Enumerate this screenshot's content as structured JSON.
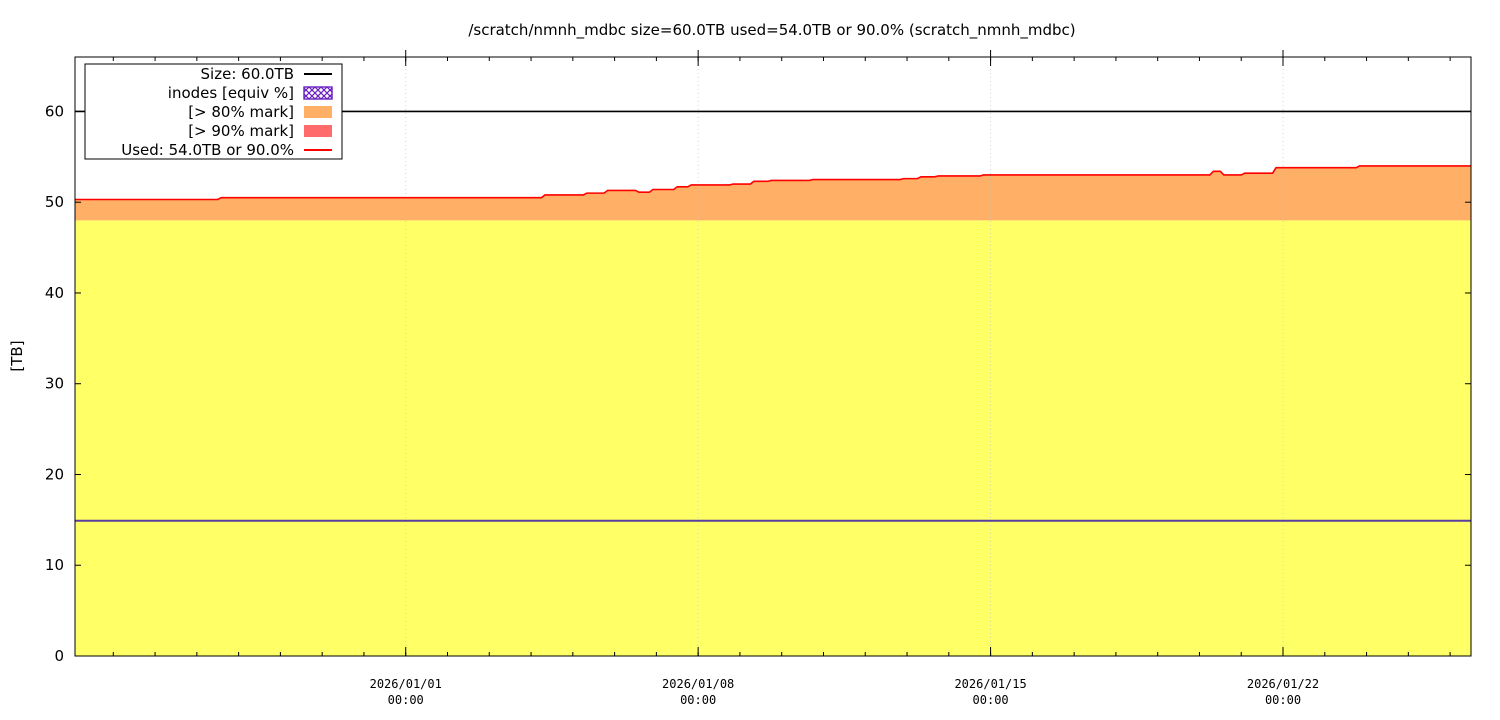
{
  "chart_data": {
    "type": "area",
    "title": "/scratch/nmnh_mdbc size=60.0TB used=54.0TB or 90.0% (scratch_nmnh_mdbc)",
    "xlabel": "",
    "ylabel": "[TB]",
    "ylim": [
      0,
      66
    ],
    "xlim": [
      "2025-12-24 02:00",
      "2026-01-26 12:00"
    ],
    "yticks": [
      "0",
      "10",
      "20",
      "30",
      "40",
      "50",
      "60"
    ],
    "xticks": [
      {
        "date": "2026/01/01",
        "time": "00:00",
        "at": "2026-01-01 00:00"
      },
      {
        "date": "2026/01/08",
        "time": "00:00",
        "at": "2026-01-08 00:00"
      },
      {
        "date": "2026/01/15",
        "time": "00:00",
        "at": "2026-01-15 00:00"
      },
      {
        "date": "2026/01/22",
        "time": "00:00",
        "at": "2026-01-22 00:00"
      }
    ],
    "grid": true,
    "legend_position": "top-left",
    "legend": [
      {
        "label": "Size: 60.0TB",
        "kind": "line",
        "color": "#000000"
      },
      {
        "label": "inodes [equiv %]",
        "kind": "hatch",
        "color": "#6a1fc0"
      },
      {
        "label": "[> 80% mark]",
        "kind": "box",
        "color": "#ffb066"
      },
      {
        "label": "[> 90% mark]",
        "kind": "box",
        "color": "#ff6b6b"
      },
      {
        "label": "Used: 54.0TB or 90.0%",
        "kind": "line",
        "color": "#ff0000"
      }
    ],
    "colors": {
      "below80": "#ffff66",
      "above80": "#ffb066",
      "used_line": "#ff0000",
      "size_line": "#000000",
      "inodes_line": "#5a3ea0"
    },
    "size_tb": 60.0,
    "mark80_tb": 48.0,
    "inodes_equiv_tb": 14.9,
    "series": [
      {
        "name": "Used: 54.0TB or 90.0%",
        "x": [
          "2025-12-24 02:00",
          "2025-12-27 12:00",
          "2025-12-27 14:00",
          "2026-01-04 06:00",
          "2026-01-04 08:00",
          "2026-01-05 06:00",
          "2026-01-05 08:00",
          "2026-01-05 18:00",
          "2026-01-05 20:00",
          "2026-01-06 12:00",
          "2026-01-06 14:00",
          "2026-01-06 20:00",
          "2026-01-06 22:00",
          "2026-01-07 10:00",
          "2026-01-07 12:00",
          "2026-01-07 18:00",
          "2026-01-07 20:00",
          "2026-01-08 18:00",
          "2026-01-08 20:00",
          "2026-01-09 06:00",
          "2026-01-09 08:00",
          "2026-01-09 16:00",
          "2026-01-09 18:00",
          "2026-01-10 16:00",
          "2026-01-10 18:00",
          "2026-01-12 20:00",
          "2026-01-12 22:00",
          "2026-01-13 06:00",
          "2026-01-13 08:00",
          "2026-01-13 16:00",
          "2026-01-13 18:00",
          "2026-01-14 18:00",
          "2026-01-14 20:00",
          "2026-01-20 06:00",
          "2026-01-20 08:00",
          "2026-01-20 12:00",
          "2026-01-20 14:00",
          "2026-01-21 00:00",
          "2026-01-21 02:00",
          "2026-01-21 18:00",
          "2026-01-21 20:00",
          "2026-01-23 18:00",
          "2026-01-23 20:00",
          "2026-01-26 12:00"
        ],
        "y": [
          50.3,
          50.3,
          50.5,
          50.5,
          50.8,
          50.8,
          51.0,
          51.0,
          51.3,
          51.3,
          51.1,
          51.1,
          51.4,
          51.4,
          51.7,
          51.7,
          51.9,
          51.9,
          52.0,
          52.0,
          52.3,
          52.3,
          52.4,
          52.4,
          52.5,
          52.5,
          52.6,
          52.6,
          52.8,
          52.8,
          52.9,
          52.9,
          53.0,
          53.0,
          53.4,
          53.4,
          53.0,
          53.0,
          53.2,
          53.2,
          53.8,
          53.8,
          54.0,
          54.0
        ]
      }
    ]
  }
}
